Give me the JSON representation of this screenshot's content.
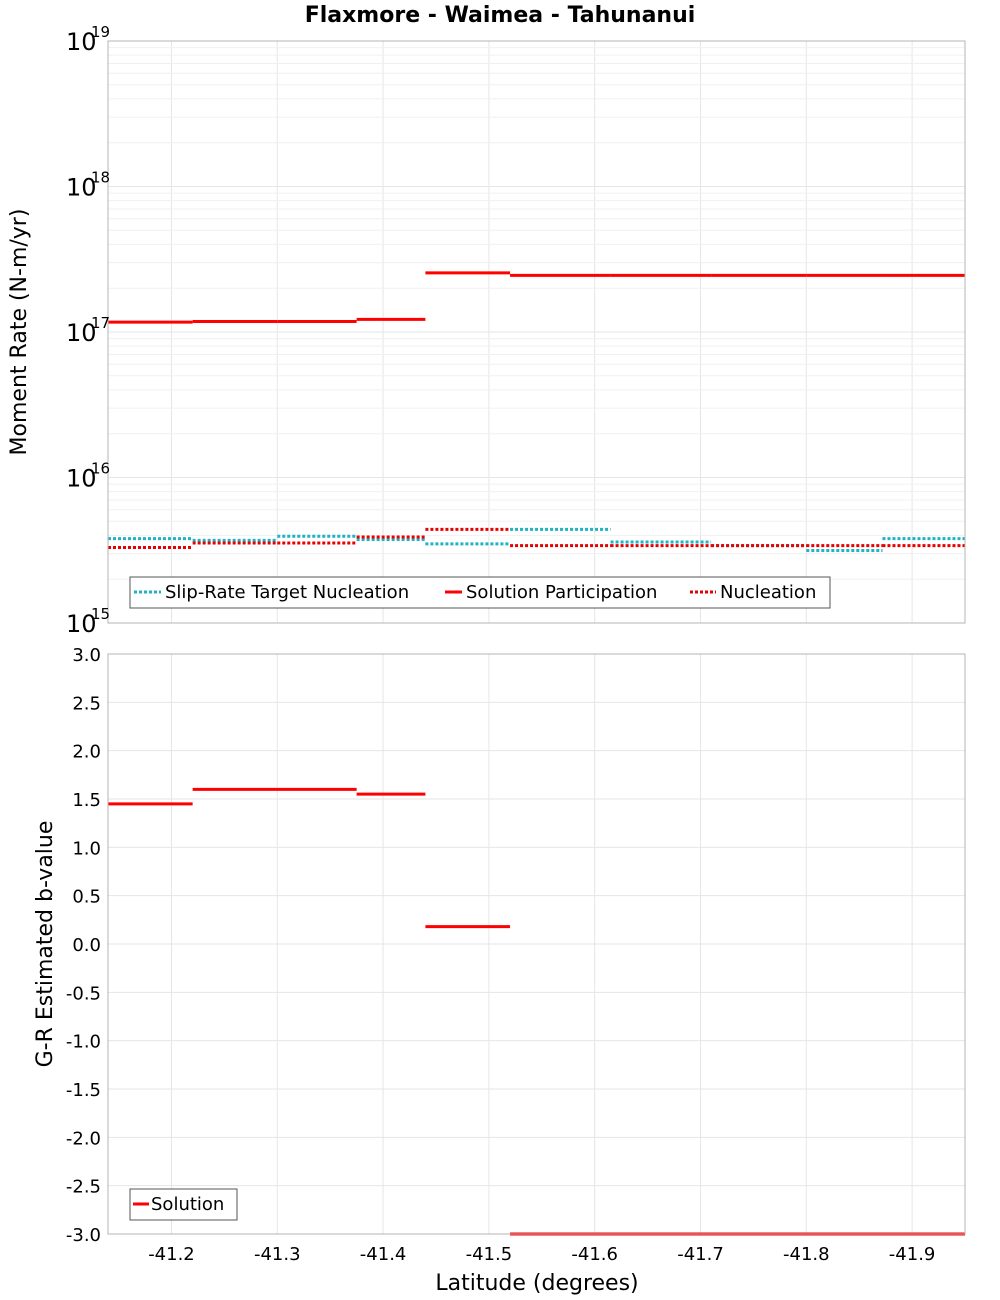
{
  "chart_data": [
    {
      "type": "line",
      "title": "Flaxmore - Waimea - Tahunanui",
      "xlabel": "",
      "ylabel": "Moment Rate (N-m/yr)",
      "yscale": "log",
      "ylim": [
        1000000000000000.0,
        1e+19
      ],
      "xlim": [
        -41.14,
        -41.95
      ],
      "ytick_bases": [
        "10",
        "10",
        "10",
        "10",
        "10"
      ],
      "ytick_exponents": [
        "15",
        "16",
        "17",
        "18",
        "19"
      ],
      "legend_position": "bottom-left",
      "series": [
        {
          "name": "Slip-Rate Target Nucleation",
          "color": "#1fb4c4",
          "style": "dotted",
          "segments": [
            {
              "x0": -41.14,
              "x1": -41.22,
              "y": 3800000000000000.0
            },
            {
              "x0": -41.22,
              "x1": -41.3,
              "y": 3700000000000000.0
            },
            {
              "x0": -41.3,
              "x1": -41.375,
              "y": 3950000000000000.0
            },
            {
              "x0": -41.375,
              "x1": -41.44,
              "y": 3750000000000000.0
            },
            {
              "x0": -41.44,
              "x1": -41.52,
              "y": 3500000000000000.0
            },
            {
              "x0": -41.52,
              "x1": -41.615,
              "y": 4400000000000000.0
            },
            {
              "x0": -41.615,
              "x1": -41.71,
              "y": 3600000000000000.0
            },
            {
              "x0": -41.71,
              "x1": -41.8,
              "y": 3400000000000000.0
            },
            {
              "x0": -41.8,
              "x1": -41.872,
              "y": 3150000000000000.0
            },
            {
              "x0": -41.872,
              "x1": -41.95,
              "y": 3800000000000000.0
            }
          ]
        },
        {
          "name": "Solution Participation",
          "color": "#ff0000",
          "style": "solid",
          "segments": [
            {
              "x0": -41.14,
              "x1": -41.22,
              "y": 1.17e+17
            },
            {
              "x0": -41.22,
              "x1": -41.3,
              "y": 1.18e+17
            },
            {
              "x0": -41.3,
              "x1": -41.375,
              "y": 1.18e+17
            },
            {
              "x0": -41.375,
              "x1": -41.44,
              "y": 1.22e+17
            },
            {
              "x0": -41.44,
              "x1": -41.52,
              "y": 2.55e+17
            },
            {
              "x0": -41.52,
              "x1": -41.615,
              "y": 2.45e+17
            },
            {
              "x0": -41.615,
              "x1": -41.71,
              "y": 2.45e+17
            },
            {
              "x0": -41.71,
              "x1": -41.8,
              "y": 2.45e+17
            },
            {
              "x0": -41.8,
              "x1": -41.872,
              "y": 2.45e+17
            },
            {
              "x0": -41.872,
              "x1": -41.95,
              "y": 2.45e+17
            }
          ]
        },
        {
          "name": "Nucleation",
          "color": "#e80000",
          "style": "dotted",
          "segments": [
            {
              "x0": -41.14,
              "x1": -41.22,
              "y": 3300000000000000.0
            },
            {
              "x0": -41.22,
              "x1": -41.3,
              "y": 3550000000000000.0
            },
            {
              "x0": -41.3,
              "x1": -41.375,
              "y": 3550000000000000.0
            },
            {
              "x0": -41.375,
              "x1": -41.44,
              "y": 3900000000000000.0
            },
            {
              "x0": -41.44,
              "x1": -41.52,
              "y": 4400000000000000.0
            },
            {
              "x0": -41.52,
              "x1": -41.615,
              "y": 3400000000000000.0
            },
            {
              "x0": -41.615,
              "x1": -41.71,
              "y": 3400000000000000.0
            },
            {
              "x0": -41.71,
              "x1": -41.8,
              "y": 3400000000000000.0
            },
            {
              "x0": -41.8,
              "x1": -41.872,
              "y": 3400000000000000.0
            },
            {
              "x0": -41.872,
              "x1": -41.95,
              "y": 3400000000000000.0
            }
          ]
        }
      ]
    },
    {
      "type": "line",
      "title": "",
      "xlabel": "Latitude (degrees)",
      "ylabel": "G-R Estimated b-value",
      "yscale": "linear",
      "ylim": [
        -3.0,
        3.0
      ],
      "xlim": [
        -41.14,
        -41.95
      ],
      "yticks": [
        "-3.0",
        "-2.5",
        "-2.0",
        "-1.5",
        "-1.0",
        "-0.5",
        "0.0",
        "0.5",
        "1.0",
        "1.5",
        "2.0",
        "2.5",
        "3.0"
      ],
      "xticks": [
        "-41.2",
        "-41.3",
        "-41.4",
        "-41.5",
        "-41.6",
        "-41.7",
        "-41.8",
        "-41.9"
      ],
      "legend_position": "bottom-left",
      "series": [
        {
          "name": "Solution",
          "color": "#ff0000",
          "style": "solid",
          "segments": [
            {
              "x0": -41.14,
              "x1": -41.22,
              "y": 1.45
            },
            {
              "x0": -41.22,
              "x1": -41.375,
              "y": 1.6
            },
            {
              "x0": -41.375,
              "x1": -41.44,
              "y": 1.55
            },
            {
              "x0": -41.44,
              "x1": -41.52,
              "y": 0.18
            },
            {
              "x0": -41.52,
              "x1": -41.95,
              "y": -3.0
            }
          ]
        }
      ]
    }
  ]
}
